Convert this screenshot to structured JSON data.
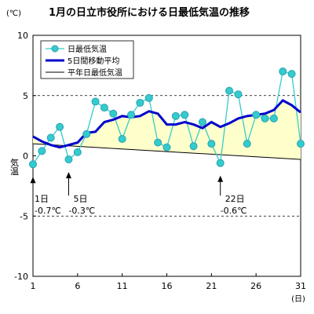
{
  "chart_data": {
    "type": "line",
    "title": "1月の日立市役所における日最低気温の推移",
    "unit_label": "(℃)",
    "ylabel": "気温",
    "xlabel_unit": "(日)",
    "ylim": [
      -10,
      10
    ],
    "xlim": [
      1,
      31
    ],
    "y_ticks": [
      -10,
      -5,
      0,
      5,
      10
    ],
    "x_ticks": [
      1,
      6,
      11,
      16,
      21,
      26,
      31
    ],
    "dashed_gridlines": [
      5,
      -5
    ],
    "legend": [
      {
        "label": "日最低気温",
        "color": "#33CCCC",
        "style": "line-marker"
      },
      {
        "label": "5日間移動平均",
        "color": "#0000CC",
        "style": "thick-line"
      },
      {
        "label": "平年日最低気温",
        "color": "#000000",
        "style": "thin-line"
      }
    ],
    "series": [
      {
        "name": "日最低気温",
        "color": "#33CCCC",
        "x": [
          1,
          2,
          3,
          4,
          5,
          6,
          7,
          8,
          9,
          10,
          11,
          12,
          13,
          14,
          15,
          16,
          17,
          18,
          19,
          20,
          21,
          22,
          23,
          24,
          25,
          26,
          27,
          28,
          29,
          30,
          31
        ],
        "values": [
          -0.7,
          0.4,
          1.5,
          2.4,
          -0.3,
          0.3,
          1.8,
          4.5,
          4.0,
          3.5,
          1.4,
          3.4,
          4.4,
          4.8,
          1.1,
          0.7,
          3.3,
          3.4,
          0.8,
          2.8,
          1.0,
          -0.6,
          5.4,
          5.1,
          1.0,
          3.4,
          3.1,
          3.1,
          7.0,
          6.8,
          1.0
        ]
      },
      {
        "name": "5日間移動平均",
        "color": "#0000CC",
        "x": [
          1,
          2,
          3,
          4,
          5,
          6,
          7,
          8,
          9,
          10,
          11,
          12,
          13,
          14,
          15,
          16,
          17,
          18,
          19,
          20,
          21,
          22,
          23,
          24,
          25,
          26,
          27,
          28,
          29,
          30,
          31
        ],
        "values": [
          1.6,
          1.2,
          0.9,
          0.7,
          0.9,
          1.1,
          1.9,
          2.0,
          2.8,
          3.0,
          3.3,
          3.2,
          3.3,
          3.7,
          3.5,
          2.6,
          2.6,
          2.8,
          2.6,
          2.3,
          2.8,
          2.4,
          2.7,
          3.1,
          3.3,
          3.4,
          3.5,
          3.8,
          4.6,
          4.2,
          3.6
        ]
      },
      {
        "name": "平年日最低気温",
        "color": "#000000",
        "x": [
          1,
          31
        ],
        "values": [
          1.0,
          -0.3
        ]
      }
    ],
    "annotations": [
      {
        "day_label": "1日",
        "value_label": "-0.7℃",
        "x": 1,
        "y": -0.7
      },
      {
        "day_label": "5日",
        "value_label": "-0.3℃",
        "x": 5,
        "y": -0.3
      },
      {
        "day_label": "22日",
        "value_label": "-0.6℃",
        "x": 22,
        "y": -0.6
      }
    ],
    "colors": {
      "fill_between": "#FFFFCC",
      "marker_fill": "#33CCCC",
      "marker_stroke": "#2A9FB4",
      "daily_line": "#33CCCC",
      "moving_avg": "#0000CC",
      "normal": "#000000",
      "title": "#000000"
    }
  }
}
